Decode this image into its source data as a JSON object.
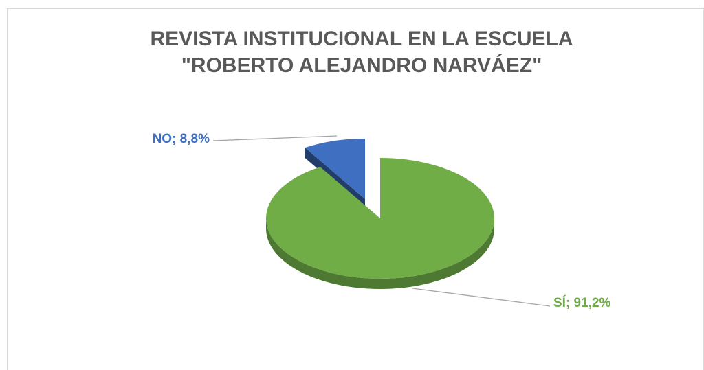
{
  "chart_data": {
    "type": "pie3d",
    "title": [
      "REVISTA INSTITUCIONAL EN LA ESCUELA",
      "\"ROBERTO ALEJANDRO NARVÁEZ\""
    ],
    "values": [
      8.8,
      91.2
    ],
    "value_labels": [
      "NO; 8,8%",
      "SÍ; 91,2%"
    ],
    "colors": [
      "#3f6fc0",
      "#70ad47"
    ]
  }
}
